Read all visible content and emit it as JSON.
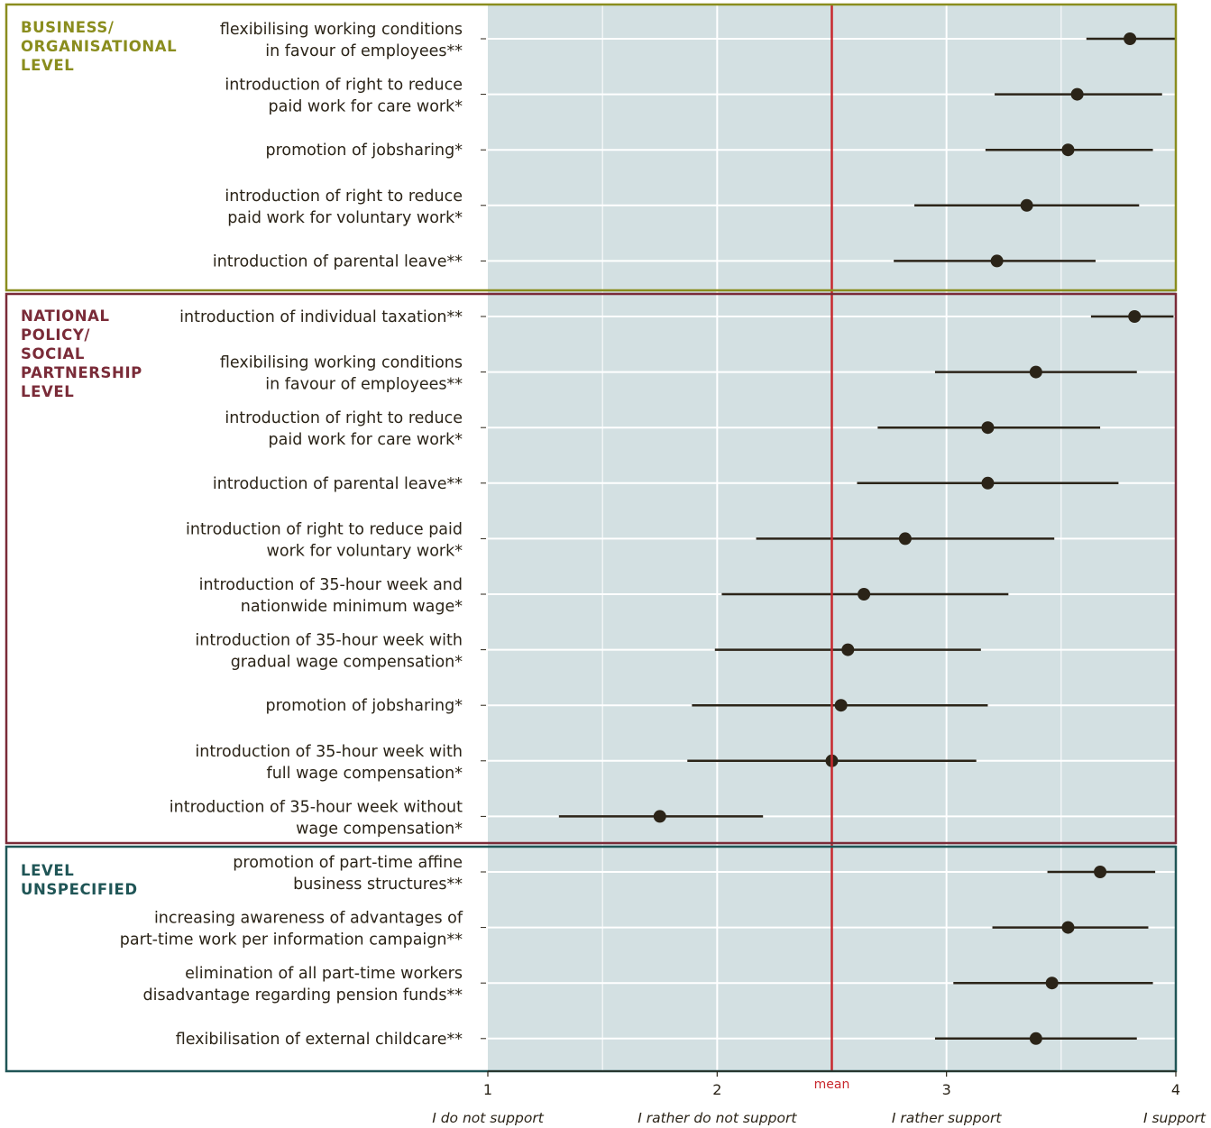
{
  "chart_data": {
    "type": "dot-errorbar",
    "x_axis": {
      "range": [
        1,
        4
      ],
      "ticks": [
        1,
        2,
        3,
        4
      ],
      "tick_labels": [
        "1",
        "2",
        "3",
        "4"
      ],
      "scale_labels": [
        "I do not support",
        "I rather do not support",
        "I rather support",
        "I support"
      ],
      "minor_gridlines": [
        1.5,
        2.5,
        3.5
      ]
    },
    "mean": {
      "value": 2.5,
      "label": "mean",
      "color": "#c8282d"
    },
    "groups": [
      {
        "title": "BUSINESS/\nORGANISATIONAL\nLEVEL",
        "color": "#8a8d1e",
        "items": [
          {
            "label": [
              "flexibilising working conditions",
              "in favour of employees**"
            ],
            "value": 3.8,
            "ci": [
              3.61,
              4.0
            ]
          },
          {
            "label": [
              "introduction of right to reduce",
              "paid work for care work*"
            ],
            "value": 3.57,
            "ci": [
              3.21,
              3.94
            ]
          },
          {
            "label": [
              "promotion of jobsharing*"
            ],
            "value": 3.53,
            "ci": [
              3.17,
              3.9
            ]
          },
          {
            "label": [
              "introduction of right to reduce",
              "paid work for voluntary work*"
            ],
            "value": 3.35,
            "ci": [
              2.86,
              3.84
            ]
          },
          {
            "label": [
              "introduction of parental leave**"
            ],
            "value": 3.22,
            "ci": [
              2.77,
              3.65
            ]
          }
        ]
      },
      {
        "title": "NATIONAL\nPOLICY/\nSOCIAL\nPARTNERSHIP\nLEVEL",
        "color": "#7a2b38",
        "items": [
          {
            "label": [
              "introduction of individual taxation**"
            ],
            "value": 3.82,
            "ci": [
              3.63,
              3.99
            ]
          },
          {
            "label": [
              "flexibilising working conditions",
              "in favour of employees**"
            ],
            "value": 3.39,
            "ci": [
              2.95,
              3.83
            ]
          },
          {
            "label": [
              "introduction of right to reduce",
              "paid work for care work*"
            ],
            "value": 3.18,
            "ci": [
              2.7,
              3.67
            ]
          },
          {
            "label": [
              "introduction of parental leave**"
            ],
            "value": 3.18,
            "ci": [
              2.61,
              3.75
            ]
          },
          {
            "label": [
              "introduction of right to reduce paid",
              "work for voluntary work*"
            ],
            "value": 2.82,
            "ci": [
              2.17,
              3.47
            ]
          },
          {
            "label": [
              "introduction of 35-hour week and",
              "nationwide minimum wage*"
            ],
            "value": 2.64,
            "ci": [
              2.02,
              3.27
            ]
          },
          {
            "label": [
              "introduction of 35-hour week with",
              "gradual wage compensation*"
            ],
            "value": 2.57,
            "ci": [
              1.99,
              3.15
            ]
          },
          {
            "label": [
              "promotion of jobsharing*"
            ],
            "value": 2.54,
            "ci": [
              1.89,
              3.18
            ]
          },
          {
            "label": [
              "introduction of 35-hour week with",
              "full wage compensation*"
            ],
            "value": 2.5,
            "ci": [
              1.87,
              3.13
            ]
          },
          {
            "label": [
              "introduction of 35-hour week without",
              "wage compensation*"
            ],
            "value": 1.75,
            "ci": [
              1.31,
              2.2
            ]
          }
        ]
      },
      {
        "title": "LEVEL\nUNSPECIFIED",
        "color": "#1f5556",
        "items": [
          {
            "label": [
              "promotion of part-time affine",
              "business structures**"
            ],
            "value": 3.67,
            "ci": [
              3.44,
              3.91
            ]
          },
          {
            "label": [
              "increasing awareness of advantages of",
              "part-time work per information campaign**"
            ],
            "value": 3.53,
            "ci": [
              3.2,
              3.88
            ]
          },
          {
            "label": [
              "elimination of all part-time workers",
              "disadvantage regarding pension funds**"
            ],
            "value": 3.46,
            "ci": [
              3.03,
              3.9
            ]
          },
          {
            "label": [
              "flexibilisation of external childcare**"
            ],
            "value": 3.39,
            "ci": [
              2.95,
              3.83
            ]
          }
        ]
      }
    ],
    "colors": {
      "panel": "#d3e0e2",
      "gridline": "#ffffff",
      "marker": "#2b2418",
      "label": "#2b2418"
    }
  }
}
